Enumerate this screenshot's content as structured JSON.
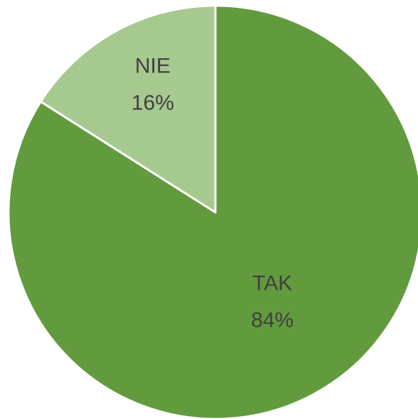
{
  "chart_data": {
    "type": "pie",
    "categories": [
      "TAK",
      "NIE"
    ],
    "values": [
      84,
      16
    ],
    "value_labels": [
      "84%",
      "16%"
    ],
    "colors": [
      "#629b3e",
      "#a6c98f"
    ]
  }
}
